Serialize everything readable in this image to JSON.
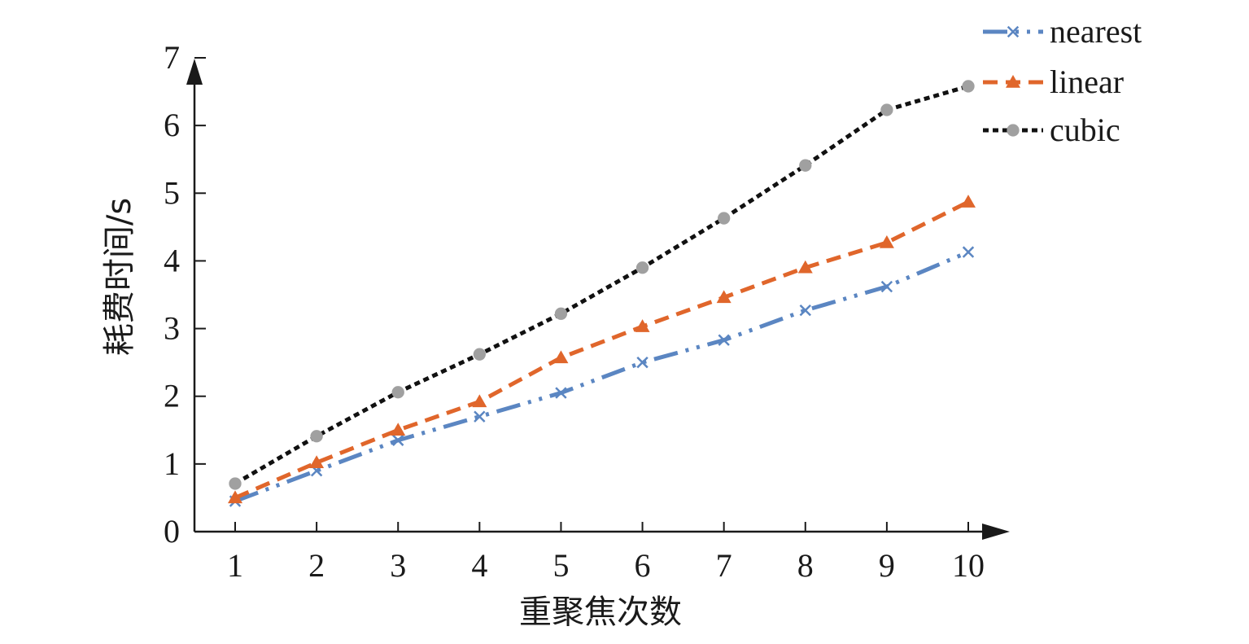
{
  "chart_data": {
    "type": "line",
    "xlabel": "重聚焦次数",
    "ylabel": "耗费时间/s",
    "x": [
      1,
      2,
      3,
      4,
      5,
      6,
      7,
      8,
      9,
      10
    ],
    "xlim": [
      0.5,
      10.5
    ],
    "ylim": [
      0,
      7
    ],
    "x_ticks": [
      "1",
      "2",
      "3",
      "4",
      "5",
      "6",
      "7",
      "8",
      "9",
      "10"
    ],
    "y_ticks": [
      "0",
      "1",
      "2",
      "3",
      "4",
      "5",
      "6",
      "7"
    ],
    "grid": false,
    "legend_position": "top-right",
    "series": [
      {
        "name": "nearest",
        "key": "nearest",
        "color": "#5b86c2",
        "marker": "x",
        "dash": "dash-dot-dot",
        "values": [
          0.45,
          0.9,
          1.35,
          1.7,
          2.05,
          2.5,
          2.83,
          3.27,
          3.62,
          4.13
        ]
      },
      {
        "name": "linear",
        "key": "linear",
        "color": "#e0662b",
        "marker": "triangle",
        "dash": "dashed",
        "values": [
          0.5,
          1.02,
          1.5,
          1.92,
          2.57,
          3.03,
          3.46,
          3.9,
          4.27,
          4.87
        ]
      },
      {
        "name": "cubic",
        "key": "cubic",
        "color": "#111111",
        "marker": "circle",
        "marker_color": "#a0a0a0",
        "dash": "dotted",
        "values": [
          0.71,
          1.41,
          2.06,
          2.62,
          3.22,
          3.9,
          4.63,
          5.41,
          6.23,
          6.58
        ]
      }
    ]
  }
}
